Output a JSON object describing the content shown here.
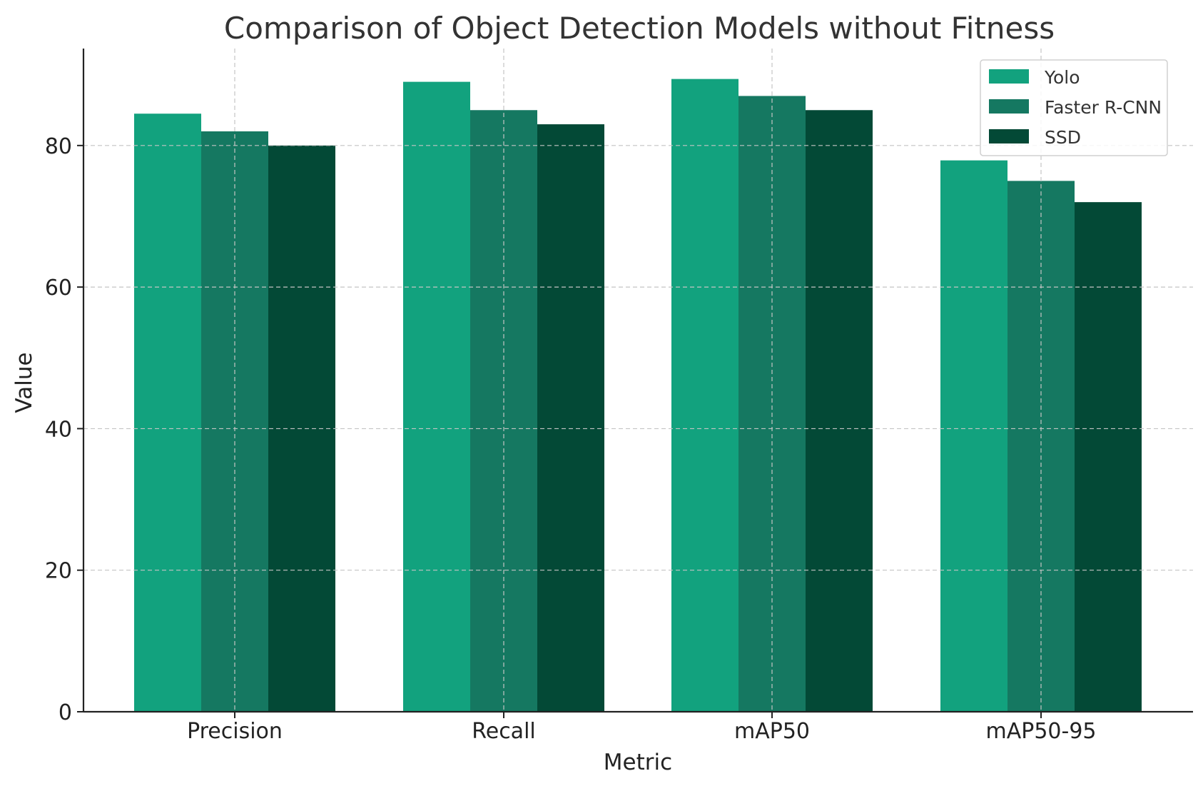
{
  "chart_data": {
    "type": "bar",
    "title": "Comparison of Object Detection Models without Fitness",
    "xlabel": "Metric",
    "ylabel": "Value",
    "categories": [
      "Precision",
      "Recall",
      "mAP50",
      "mAP50-95"
    ],
    "series": [
      {
        "name": "Yolo",
        "values": [
          84.5,
          89.0,
          89.4,
          77.9
        ],
        "color": "#12a27e"
      },
      {
        "name": "Faster R-CNN",
        "values": [
          82.0,
          85.0,
          87.0,
          75.0
        ],
        "color": "#157861"
      },
      {
        "name": "SSD",
        "values": [
          80.0,
          83.0,
          85.0,
          72.0
        ],
        "color": "#034936"
      }
    ],
    "ylim": [
      0,
      93.7
    ],
    "yticks": [
      0,
      20,
      40,
      60,
      80
    ],
    "grid": true,
    "legend_position": "top-right"
  }
}
